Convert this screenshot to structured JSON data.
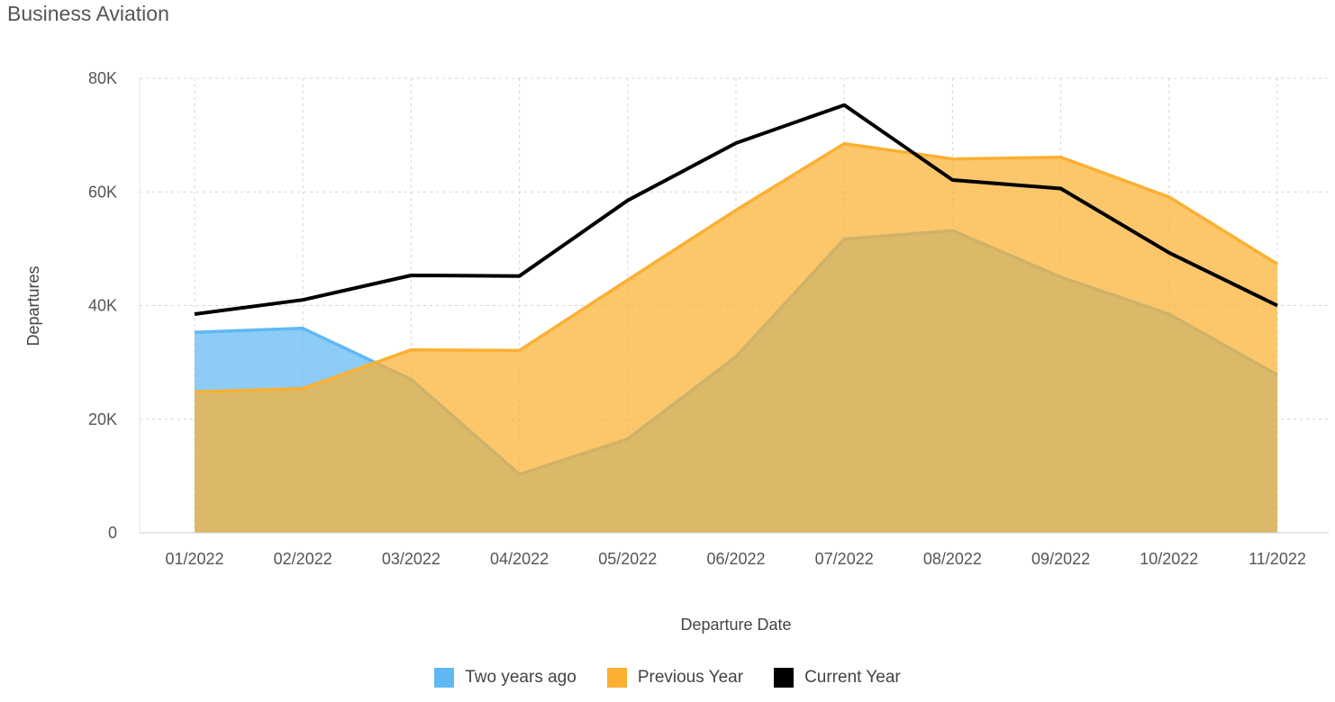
{
  "chart_data": {
    "type": "area",
    "title": "Business Aviation",
    "xlabel": "Departure Date",
    "ylabel": "Departures",
    "categories": [
      "01/2022",
      "02/2022",
      "03/2022",
      "04/2022",
      "05/2022",
      "06/2022",
      "07/2022",
      "08/2022",
      "09/2022",
      "10/2022",
      "11/2022"
    ],
    "ylim": [
      0,
      80000
    ],
    "yticks": [
      0,
      20000,
      40000,
      60000,
      80000
    ],
    "ytick_labels": [
      "0",
      "20K",
      "40K",
      "60K",
      "80K"
    ],
    "grid": true,
    "legend_position": "bottom-center",
    "series": [
      {
        "name": "Two years ago",
        "kind": "area",
        "color": "#5fb8f4",
        "values": [
          35300,
          36000,
          27000,
          10300,
          16500,
          31000,
          51700,
          53200,
          45000,
          38500,
          27800
        ]
      },
      {
        "name": "Previous Year",
        "kind": "area",
        "color": "#fbb032",
        "values": [
          24800,
          25400,
          32200,
          32100,
          44500,
          56800,
          68500,
          65800,
          66100,
          59100,
          47300
        ]
      },
      {
        "name": "Current Year",
        "kind": "line",
        "color": "#000000",
        "values": [
          38500,
          41000,
          45300,
          45200,
          58500,
          68600,
          75300,
          62100,
          60600,
          49300,
          40000
        ]
      }
    ]
  }
}
